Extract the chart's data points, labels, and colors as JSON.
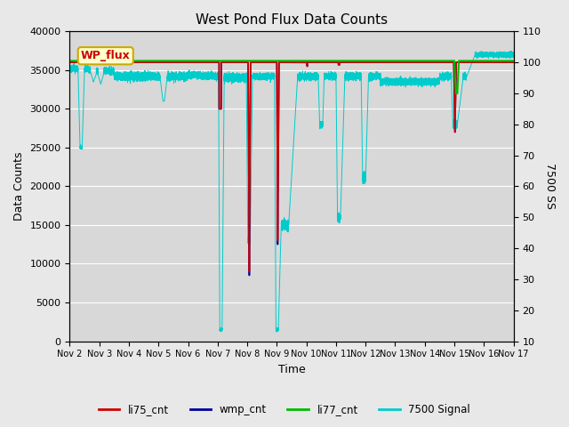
{
  "title": "West Pond Flux Data Counts",
  "xlabel": "Time",
  "ylabel_left": "Data Counts",
  "ylabel_right": "7500 SS",
  "ylim_left": [
    0,
    40000
  ],
  "ylim_right": [
    10,
    110
  ],
  "fig_facecolor": "#e8e8e8",
  "ax_facecolor": "#d8d8d8",
  "inset_label": "WP_flux",
  "x_tick_labels": [
    "Nov 2",
    "Nov 3",
    "Nov 4",
    "Nov 5",
    "Nov 6",
    "Nov 7",
    "Nov 8",
    "Nov 9",
    "Nov 10",
    "Nov 11",
    "Nov 12",
    "Nov 13",
    "Nov 14",
    "Nov 15",
    "Nov 16",
    "Nov 17"
  ],
  "legend_entries": [
    "li75_cnt",
    "wmp_cnt",
    "li77_cnt",
    "7500 Signal"
  ],
  "legend_colors": [
    "#cc0000",
    "#000099",
    "#00bb00",
    "#00cccc"
  ]
}
